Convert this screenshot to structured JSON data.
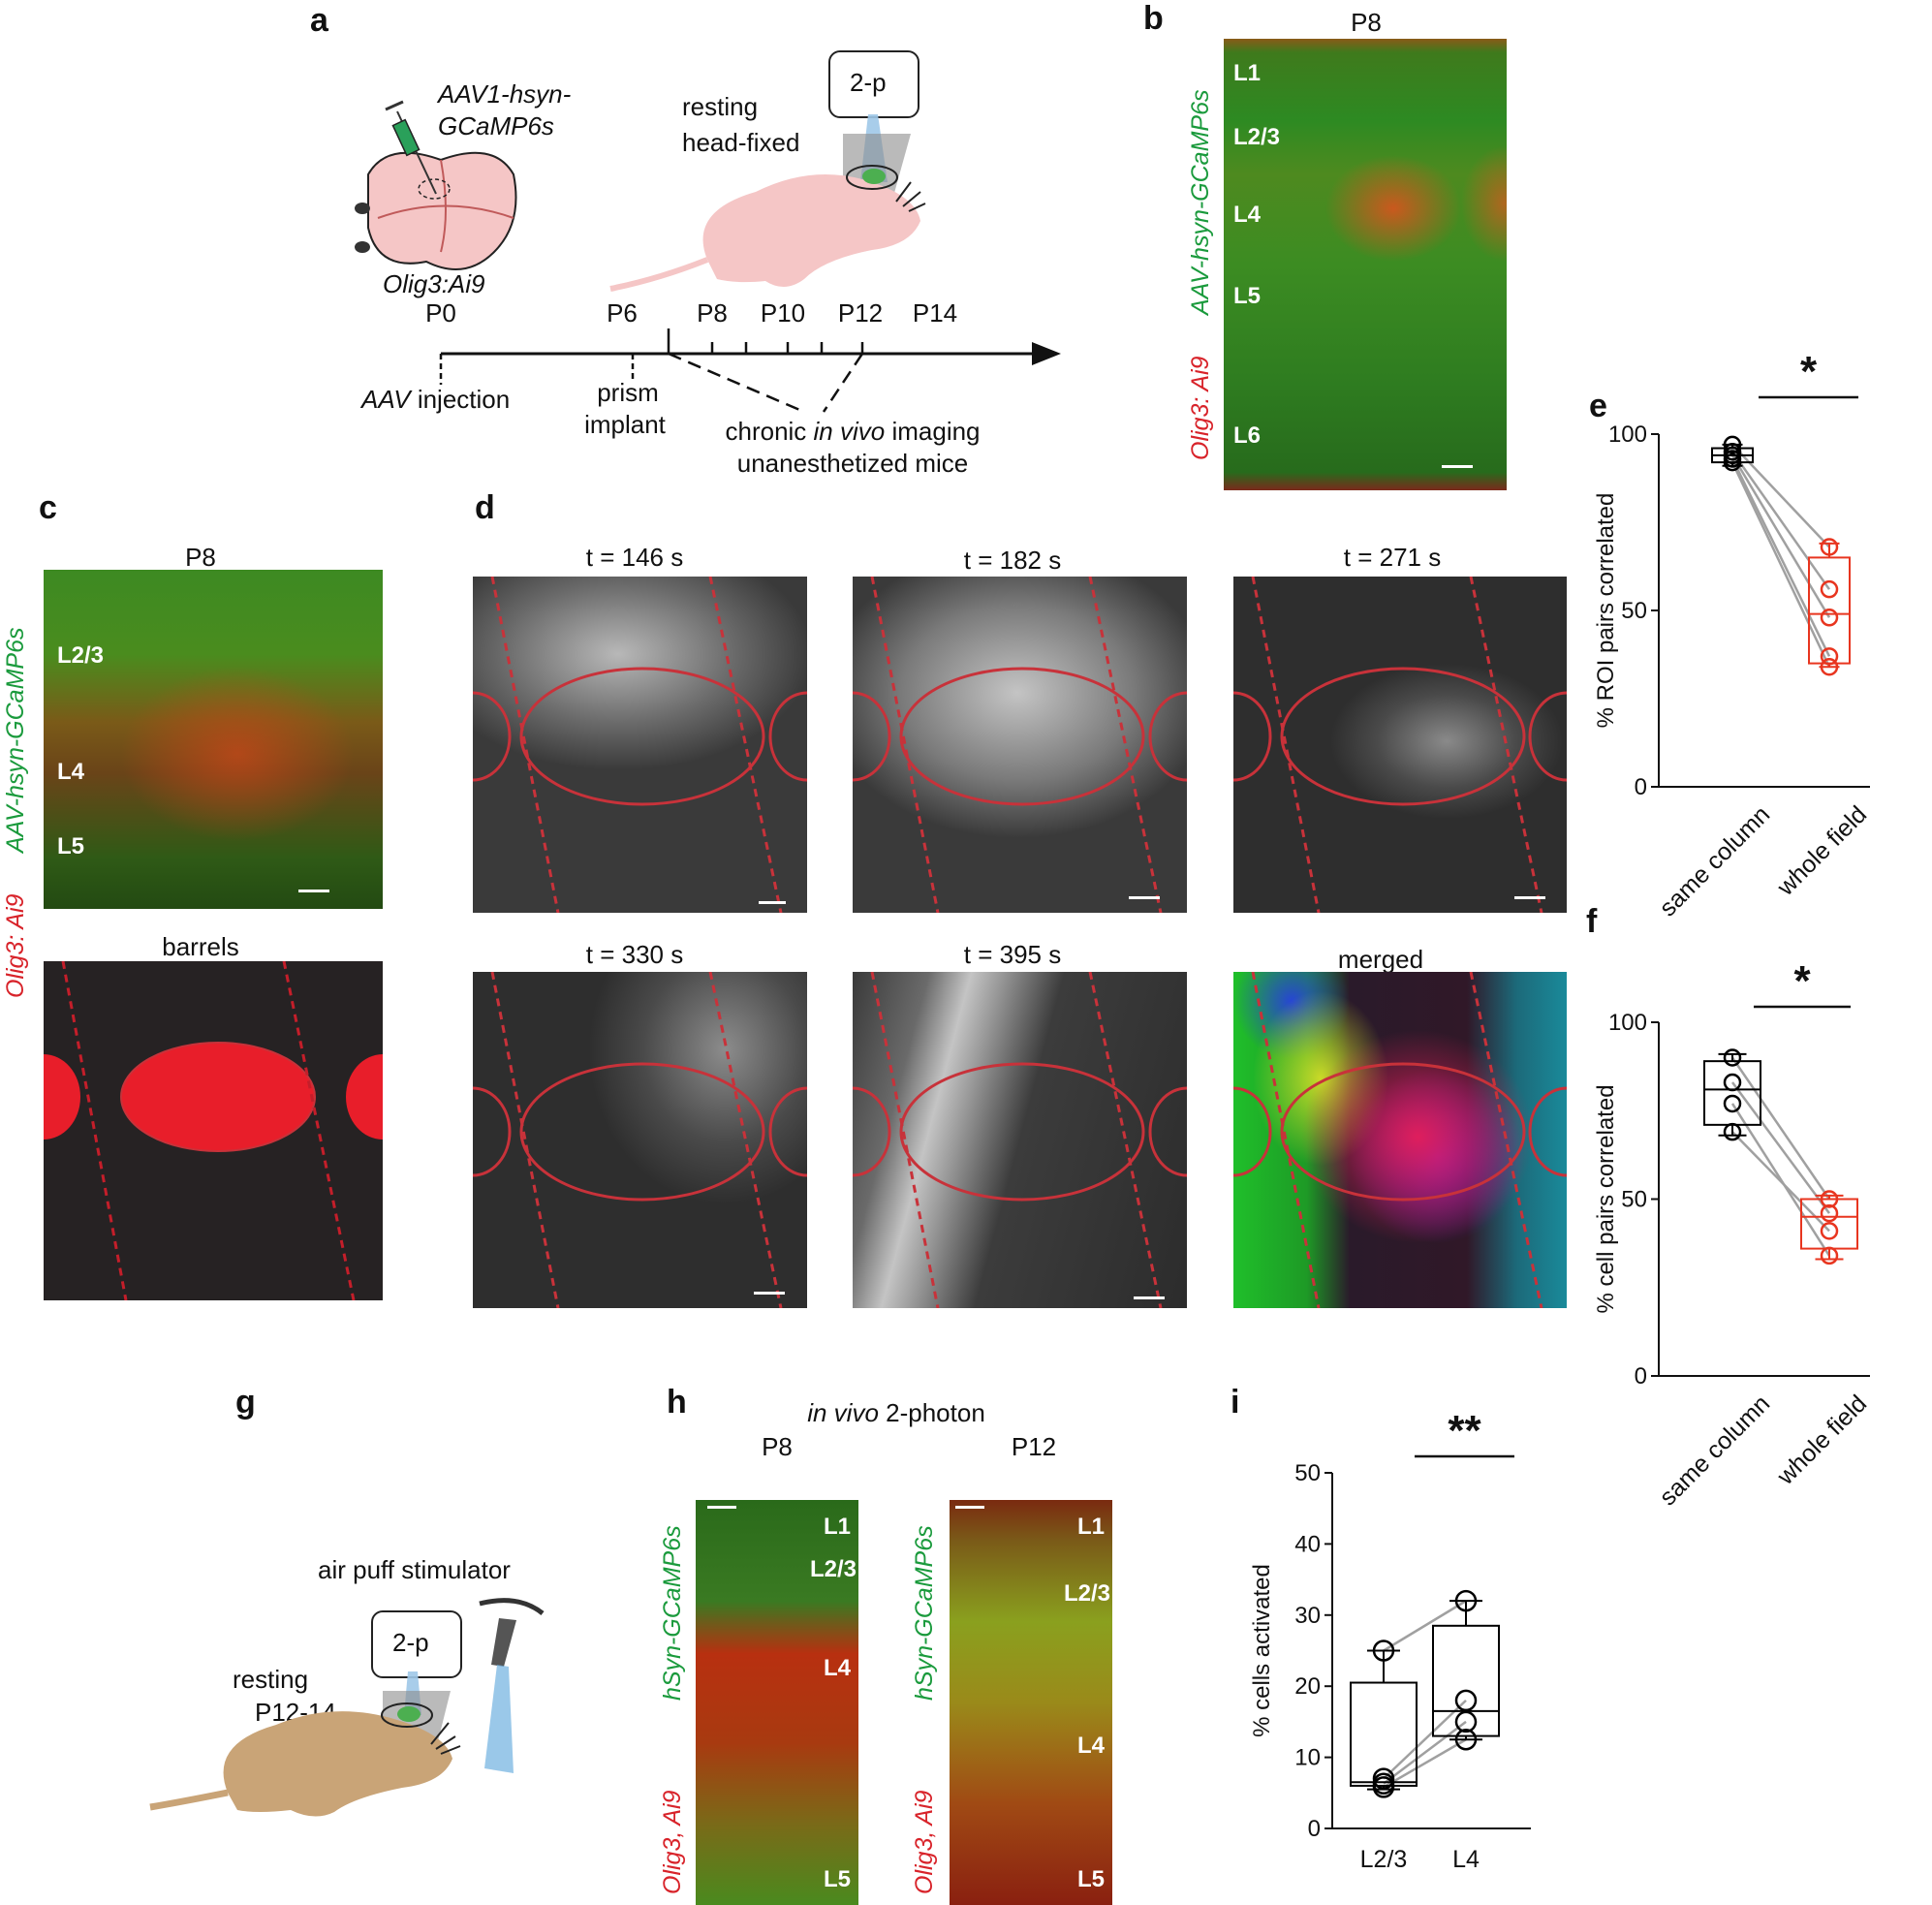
{
  "panels": {
    "a": "a",
    "b": "b",
    "c": "c",
    "d": "d",
    "e": "e",
    "f": "f",
    "g": "g",
    "h": "h",
    "i": "i"
  },
  "panel_a": {
    "virus_line1": "AAV1-hsyn-",
    "virus_line2": "GCaMP6s",
    "mouse_line": "Olig3:Ai9",
    "imaging_label": "2-p",
    "resting_line1": "resting",
    "resting_line2": "head-fixed",
    "timeline_ticks": [
      "P0",
      "P6",
      "P8",
      "P10",
      "P12",
      "P14"
    ],
    "aav_word": "AAV",
    "injection_word": " injection",
    "prism_line1": "prism",
    "prism_line2": "implant",
    "chronic_pre": "chronic ",
    "chronic_italic": "in vivo",
    "chronic_post": " imaging",
    "chronic_line2": "unanesthetized mice"
  },
  "panel_b": {
    "title": "P8",
    "green_label": "AAV-hsyn-GCaMP6s",
    "red_label": "Olig3: Ai9",
    "layers": [
      "L1",
      "L2/3",
      "L4",
      "L5",
      "L6"
    ]
  },
  "panel_c": {
    "title": "P8",
    "green_label": "AAV-hsyn-GCaMP6s",
    "red_label": "Olig3: Ai9",
    "layers": [
      "L2/3",
      "L4",
      "L5"
    ],
    "barrels_title": "barrels"
  },
  "panel_d": {
    "frames": [
      "t = 146 s",
      "t = 182 s",
      "t = 271 s",
      "t = 330 s",
      "t = 395 s",
      "merged"
    ]
  },
  "panel_g": {
    "stimulator": "air puff stimulator",
    "imaging_label": "2-p",
    "resting": "resting",
    "age": "P12-14"
  },
  "panel_h": {
    "title_italic": "in vivo",
    "title_rest": " 2-photon",
    "images": [
      {
        "title": "P8",
        "layers": [
          "L1",
          "L2/3",
          "L4",
          "L5"
        ]
      },
      {
        "title": "P12",
        "layers": [
          "L1",
          "L2/3",
          "L4",
          "L5"
        ]
      }
    ],
    "green_label": "hSyn-GCaMP6s",
    "red_label": "Olig3, Ai9"
  },
  "chart_data": [
    {
      "panel": "e",
      "type": "box",
      "categories": [
        "same column",
        "whole field"
      ],
      "ylabel": "% ROI pairs correlated",
      "ylim": [
        0,
        100
      ],
      "yticks": [
        0,
        50,
        100
      ],
      "significance": "*",
      "box_stats": [
        {
          "min": 91,
          "q1": 92,
          "median": 94,
          "q3": 96,
          "max": 97,
          "color": "#000000"
        },
        {
          "min": 34,
          "q1": 35,
          "median": 49,
          "q3": 65,
          "max": 69,
          "color": "#e8351f"
        }
      ],
      "points": [
        [
          92,
          93,
          94,
          95,
          97
        ],
        [
          34,
          37,
          48,
          56,
          68
        ]
      ],
      "pairs": [
        [
          92,
          34
        ],
        [
          93,
          37
        ],
        [
          94,
          48
        ],
        [
          95,
          56
        ],
        [
          97,
          68
        ]
      ]
    },
    {
      "panel": "f",
      "type": "box",
      "categories": [
        "same column",
        "whole field"
      ],
      "ylabel": "% cell pairs correlated",
      "ylim": [
        0,
        100
      ],
      "yticks": [
        0,
        50,
        100
      ],
      "significance": "*",
      "box_stats": [
        {
          "min": 68,
          "q1": 71,
          "median": 81,
          "q3": 89,
          "max": 91,
          "color": "#000000"
        },
        {
          "min": 33,
          "q1": 36,
          "median": 45,
          "q3": 50,
          "max": 51,
          "color": "#e8351f"
        }
      ],
      "points": [
        [
          69,
          77,
          83,
          90
        ],
        [
          34,
          41,
          46,
          50
        ]
      ],
      "pairs": [
        [
          69,
          41
        ],
        [
          77,
          34
        ],
        [
          83,
          46
        ],
        [
          90,
          50
        ]
      ]
    },
    {
      "panel": "i",
      "type": "box",
      "categories": [
        "L2/3",
        "L4"
      ],
      "ylabel": "% cells activated",
      "ylim": [
        0,
        50
      ],
      "yticks": [
        0,
        10,
        20,
        30,
        40,
        50
      ],
      "significance": "**",
      "box_stats": [
        {
          "min": 5.5,
          "q1": 6,
          "median": 6.5,
          "q3": 20.5,
          "max": 25,
          "color": "#000000"
        },
        {
          "min": 12.5,
          "q1": 13,
          "median": 16.5,
          "q3": 28.5,
          "max": 32,
          "color": "#000000"
        }
      ],
      "points": [
        [
          5.8,
          6.3,
          7.0,
          25
        ],
        [
          12.5,
          15,
          18,
          32
        ]
      ],
      "pairs": [
        [
          25,
          32
        ],
        [
          7.0,
          18
        ],
        [
          6.3,
          15
        ],
        [
          5.8,
          12.5
        ]
      ]
    }
  ]
}
